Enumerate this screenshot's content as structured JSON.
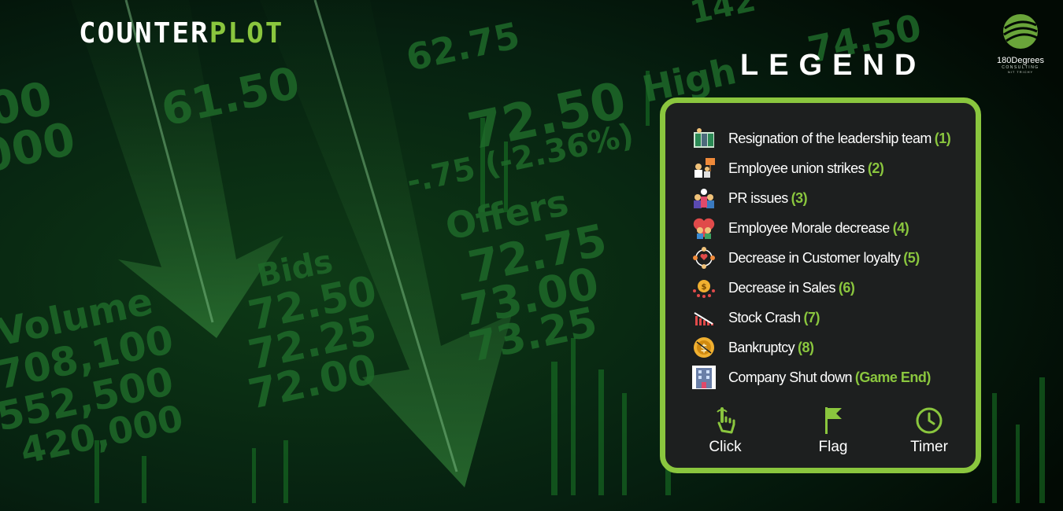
{
  "background": {
    "ticker_texts": [
      "61.50",
      "72.50",
      "-.75 (-2.36%)",
      "Offers",
      "72.75",
      "73.00",
      "73.25",
      "Bids",
      "72.50",
      "72.25",
      "72.00",
      "Volume",
      "708,100",
      "552,500",
      "420,000",
      "High",
      "74.50",
      "62.75",
      "00",
      "000",
      "142"
    ]
  },
  "logo": {
    "part1": "COUNTER",
    "part2": "PLOT"
  },
  "brand": {
    "name": "180Degrees",
    "line1": "CONSULTING",
    "line2": "NIT TRICHY"
  },
  "legend": {
    "title": "LEGEND",
    "items": [
      {
        "icon": "leadership-resign-icon",
        "label": "Resignation of the leadership  team",
        "num": "(1)"
      },
      {
        "icon": "union-strike-icon",
        "label": "Employee union strikes",
        "num": "(2)"
      },
      {
        "icon": "pr-issues-icon",
        "label": "PR issues",
        "num": "(3)"
      },
      {
        "icon": "morale-decrease-icon",
        "label": "Employee Morale decrease",
        "num": "(4)"
      },
      {
        "icon": "customer-loyalty-icon",
        "label": "Decrease in Customer loyalty",
        "num": "(5)"
      },
      {
        "icon": "sales-decrease-icon",
        "label": "Decrease in Sales",
        "num": "(6)"
      },
      {
        "icon": "stock-crash-icon",
        "label": "Stock Crash",
        "num": "(7)"
      },
      {
        "icon": "bankruptcy-icon",
        "label": "Bankruptcy",
        "num": "(8)"
      },
      {
        "icon": "company-building-icon",
        "label": "Company Shut down",
        "num": "(Game End)"
      }
    ],
    "controls": [
      {
        "icon": "click-hand-icon",
        "label": "Click"
      },
      {
        "icon": "flag-icon",
        "label": "Flag"
      },
      {
        "icon": "timer-icon",
        "label": "Timer"
      }
    ]
  },
  "colors": {
    "accent": "#8ac63e",
    "panel_bg": "#1d1f1f",
    "text": "#ffffff"
  }
}
